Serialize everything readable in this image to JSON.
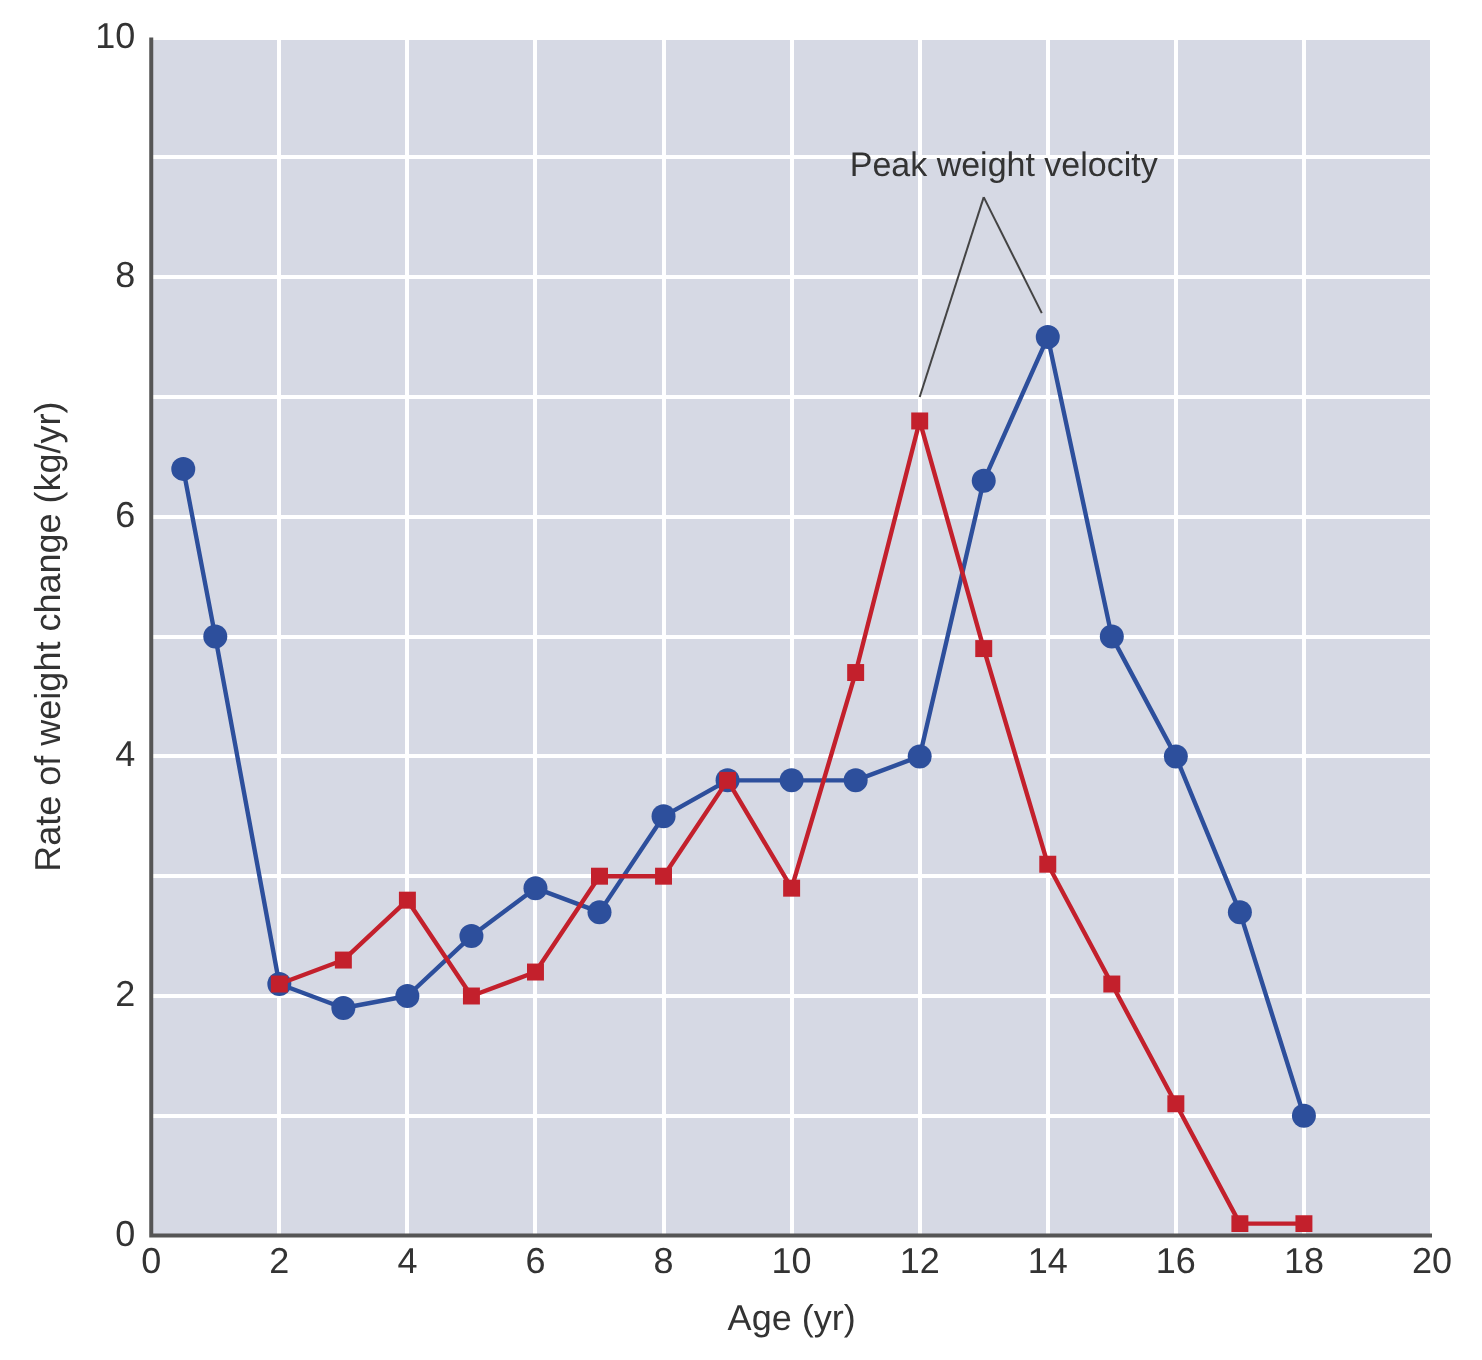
{
  "chart_data": {
    "type": "line",
    "xlabel": "Age (yr)",
    "ylabel": "Rate of weight change (kg/yr)",
    "annotations": [
      "Peak weight velocity"
    ],
    "series": [
      {
        "color": "#2d4f9c",
        "marker": "circle",
        "x": [
          0.5,
          1,
          2,
          3,
          4,
          5,
          6,
          7,
          8,
          9,
          10,
          11,
          12,
          13,
          14,
          15,
          16,
          17,
          18
        ],
        "values": [
          6.4,
          5.0,
          2.1,
          1.9,
          2.0,
          2.5,
          2.9,
          2.7,
          3.5,
          3.8,
          3.8,
          3.8,
          4.0,
          6.3,
          7.5,
          5.0,
          4.0,
          2.7,
          1.0
        ]
      },
      {
        "color": "#c3202c",
        "marker": "square",
        "x": [
          2,
          3,
          4,
          5,
          6,
          7,
          8,
          9,
          10,
          11,
          12,
          13,
          14,
          15,
          16,
          17,
          18
        ],
        "values": [
          2.1,
          2.3,
          2.8,
          2.0,
          2.2,
          3.0,
          3.0,
          3.8,
          2.9,
          4.7,
          6.8,
          4.9,
          3.1,
          2.1,
          1.1,
          0.1,
          0.1
        ]
      }
    ],
    "xlim": [
      0,
      20
    ],
    "xticks": [
      0,
      2,
      4,
      6,
      8,
      10,
      12,
      14,
      16,
      18,
      20
    ],
    "ylim": [
      0,
      10
    ],
    "yticks": [
      0,
      {
        "value": 1,
        "label": null
      },
      2,
      {
        "value": 3,
        "label": null
      },
      4,
      {
        "value": 5,
        "label": null
      },
      6,
      {
        "value": 7,
        "label": null
      },
      8,
      {
        "value": 9,
        "label": null
      },
      10
    ],
    "grid": true,
    "legend": false,
    "line_style": "solid"
  }
}
